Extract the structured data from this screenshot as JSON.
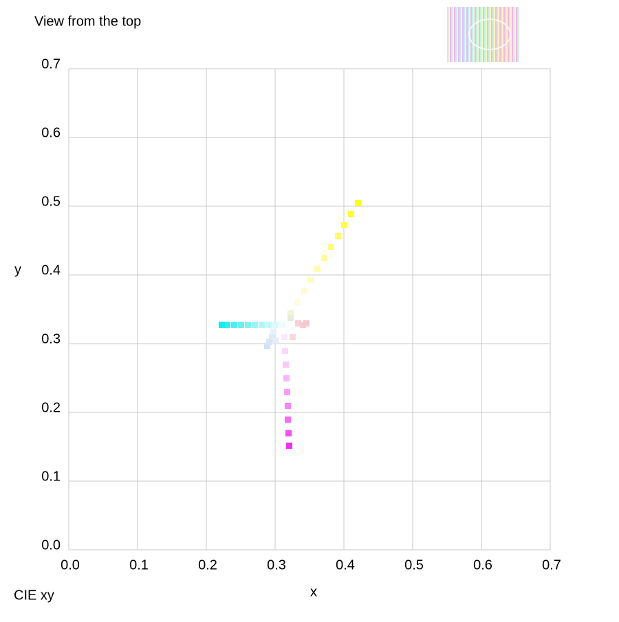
{
  "chart_data": {
    "type": "scatter",
    "title": "View from the top",
    "caption": "CIE xy",
    "xlabel": "x",
    "ylabel": "y",
    "xlim": [
      0,
      0.7
    ],
    "ylim": [
      0,
      0.7
    ],
    "xticks": [
      {
        "value": 0,
        "label": "0.0"
      },
      0.1,
      0.2,
      0.3,
      0.4,
      0.5,
      0.6,
      0.7
    ],
    "yticks": [
      {
        "value": 0,
        "label": "0.0"
      },
      0.1,
      0.2,
      0.3,
      0.4,
      0.5,
      0.6,
      0.7
    ],
    "grid": true,
    "series": [
      {
        "x": [
          0.322,
          0.332,
          0.342,
          0.351,
          0.361,
          0.371,
          0.381,
          0.391,
          0.4,
          0.41,
          0.42
        ],
        "values": [
          0.345,
          0.361,
          0.377,
          0.393,
          0.409,
          0.425,
          0.441,
          0.457,
          0.473,
          0.489,
          0.505
        ],
        "colors": [
          "#f4f4dc",
          "#fffbe0",
          "#fffbd0",
          "#fffbc0",
          "#fffcb0",
          "#fffc98",
          "#fffc80",
          "#fffd66",
          "#fffd4c",
          "#fffe30",
          "#ffff10"
        ]
      },
      {
        "x": [
          0.31,
          0.3,
          0.29,
          0.28,
          0.27,
          0.26,
          0.25,
          0.24,
          0.23,
          0.222
        ],
        "values": [
          0.328,
          0.328,
          0.328,
          0.328,
          0.328,
          0.328,
          0.328,
          0.328,
          0.328,
          0.328
        ],
        "colors": [
          "#eefcfc",
          "#d8fafa",
          "#c4f8f8",
          "#b0f6f6",
          "#98f4f4",
          "#80f2f2",
          "#66f0f0",
          "#4cefef",
          "#30eeee",
          "#10eeee"
        ]
      },
      {
        "x": [
          0.313,
          0.314,
          0.315,
          0.316,
          0.317,
          0.318,
          0.318,
          0.319,
          0.32
        ],
        "values": [
          0.31,
          0.29,
          0.27,
          0.25,
          0.23,
          0.21,
          0.19,
          0.17,
          0.152
        ],
        "colors": [
          "#fde8fd",
          "#fcd8fc",
          "#fcc8fc",
          "#fbb4fb",
          "#fa9cfa",
          "#f884f8",
          "#f66cf6",
          "#f44ef4",
          "#f22ef2"
        ]
      },
      {
        "x": [
          0.288,
          0.291,
          0.295,
          0.3,
          0.297
        ],
        "values": [
          0.297,
          0.303,
          0.31,
          0.305,
          0.318
        ],
        "colors": [
          "#cfe2f8",
          "#d6e6f8",
          "#dce9f8",
          "#e4eef8",
          "#e8f0f8"
        ]
      },
      {
        "x": [
          0.325,
          0.333,
          0.34,
          0.345,
          0.322
        ],
        "values": [
          0.31,
          0.33,
          0.328,
          0.33,
          0.338
        ],
        "colors": [
          "#f8d8dc",
          "#f6d0d4",
          "#f4ccd0",
          "#f4c8cc",
          "#e8ecd8"
        ]
      }
    ]
  }
}
